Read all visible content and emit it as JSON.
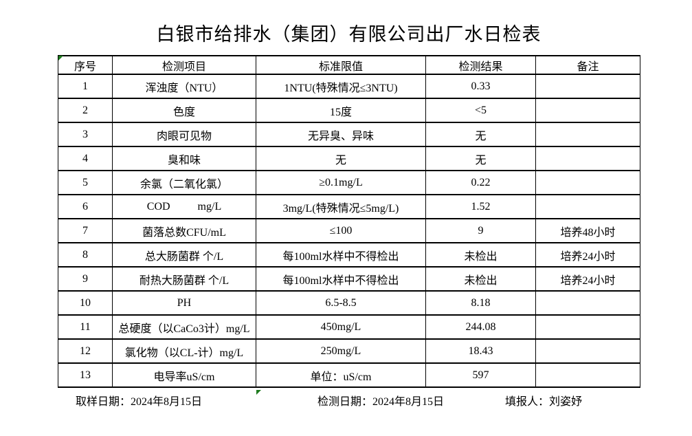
{
  "title": "白银市给排水（集团）有限公司出厂水日检表",
  "table": {
    "headers": [
      "序号",
      "检测项目",
      "标准限值",
      "检测结果",
      "备注"
    ],
    "rows": [
      [
        "1",
        "浑浊度（NTU）",
        "1NTU(特殊情况≤3NTU)",
        "0.33",
        ""
      ],
      [
        "2",
        "色度",
        "15度",
        "<5",
        ""
      ],
      [
        "3",
        "肉眼可见物",
        "无异臭、异味",
        "无",
        ""
      ],
      [
        "4",
        "臭和味",
        "无",
        "无",
        ""
      ],
      [
        "5",
        "余氯（二氧化氯）",
        "≥0.1mg/L",
        "0.22",
        ""
      ],
      [
        "6",
        "COD          mg/L",
        "3mg/L(特殊情况≤5mg/L)",
        "1.52",
        ""
      ],
      [
        "7",
        "菌落总数CFU/mL",
        "≤100",
        "9",
        "培养48小时"
      ],
      [
        "8",
        "总大肠菌群 个/L",
        "每100ml水样中不得检出",
        "未检出",
        "培养24小时"
      ],
      [
        "9",
        "耐热大肠菌群 个/L",
        "每100ml水样中不得检出",
        "未检出",
        "培养24小时"
      ],
      [
        "10",
        "PH",
        "6.5-8.5",
        "8.18",
        ""
      ],
      [
        "11",
        "总硬度（以CaCo3计）mg/L",
        "450mg/L",
        "244.08",
        ""
      ],
      [
        "12",
        "氯化物（以CL-计）mg/L",
        "250mg/L",
        "18.43",
        ""
      ],
      [
        "13",
        "电导率uS/cm",
        "单位：uS/cm",
        "597",
        ""
      ]
    ]
  },
  "footer": {
    "sampling_date": "取样日期：2024年8月15日",
    "test_date": "检测日期：2024年8月15日",
    "reporter": "填报人：刘姿妤"
  },
  "colors": {
    "grid": "#000000",
    "text": "#000000",
    "flag_green": "#1e7b1e",
    "background": "#ffffff"
  }
}
